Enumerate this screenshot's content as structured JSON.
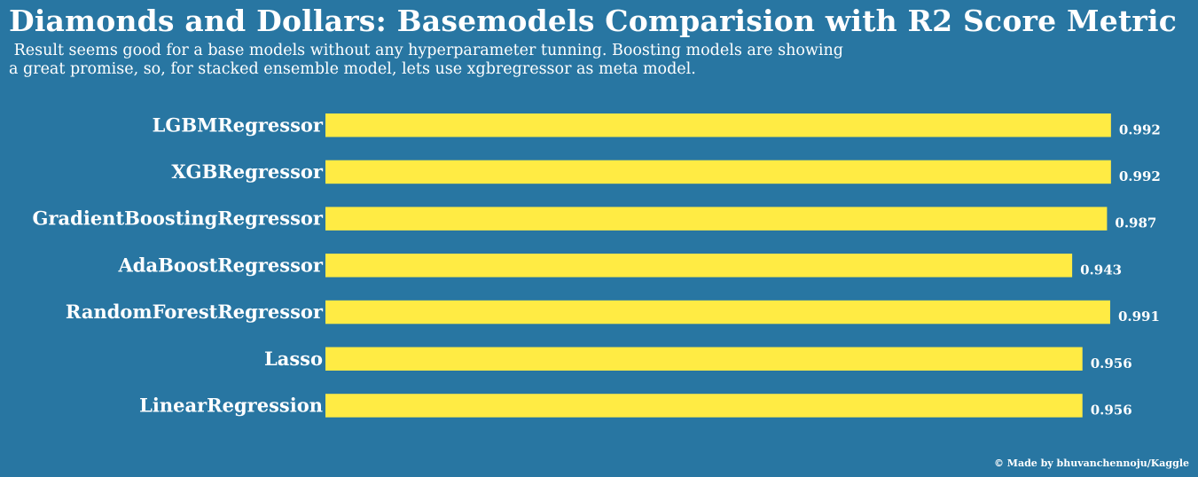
{
  "title": "Diamonds and Dollars: Basemodels Comparision with R2 Score Metric",
  "subtitle_line1": " Result seems good for a base models without any hyperparameter tunning. Boosting models are showing",
  "subtitle_line2": "a great promise, so, for stacked ensemble model, lets use xgbregressor as meta model.",
  "credit": "© Made by bhuvanchennoju/Kaggle",
  "colors": {
    "background": "#2876a2",
    "bar": "#ffeb44",
    "text": "#ffffff"
  },
  "chart_data": {
    "type": "bar",
    "orientation": "horizontal",
    "metric": "R2 Score",
    "categories": [
      "LGBMRegressor",
      "XGBRegressor",
      "GradientBoostingRegressor",
      "AdaBoostRegressor",
      "RandomForestRegressor",
      "Lasso",
      "LinearRegression"
    ],
    "values": [
      0.992,
      0.992,
      0.987,
      0.943,
      0.991,
      0.956,
      0.956
    ],
    "value_labels": [
      "0.992",
      "0.992",
      "0.987",
      "0.943",
      "0.991",
      "0.956",
      "0.956"
    ],
    "xlim": [
      0,
      1
    ],
    "grid": false,
    "axes_visible": false
  }
}
